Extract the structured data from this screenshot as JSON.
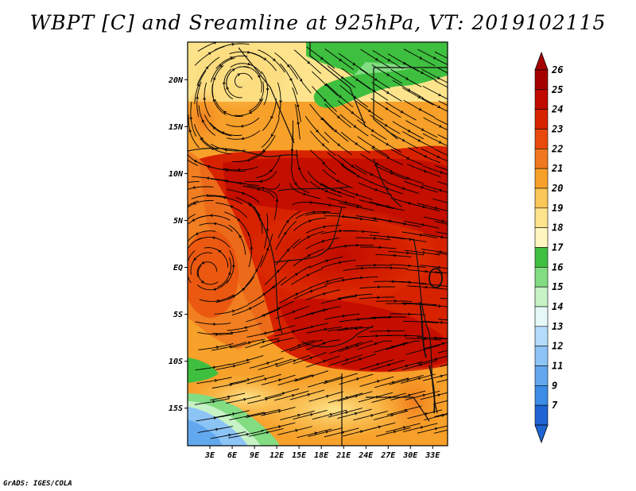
{
  "title": "WBPT [C] and Sreamline at 925hPa, VT: 2019102115",
  "credit": "GrADS: IGES/COLA",
  "map": {
    "lon_range": [
      0,
      35
    ],
    "lat_range": [
      -19,
      24
    ],
    "lon_ticks": [
      {
        "value": 3,
        "label": "3E"
      },
      {
        "value": 6,
        "label": "6E"
      },
      {
        "value": 9,
        "label": "9E"
      },
      {
        "value": 12,
        "label": "12E"
      },
      {
        "value": 15,
        "label": "15E"
      },
      {
        "value": 18,
        "label": "18E"
      },
      {
        "value": 21,
        "label": "21E"
      },
      {
        "value": 24,
        "label": "24E"
      },
      {
        "value": 27,
        "label": "27E"
      },
      {
        "value": 30,
        "label": "30E"
      },
      {
        "value": 33,
        "label": "33E"
      }
    ],
    "lat_ticks": [
      {
        "value": 20,
        "label": "20N"
      },
      {
        "value": 15,
        "label": "15N"
      },
      {
        "value": 10,
        "label": "10N"
      },
      {
        "value": 5,
        "label": "5N"
      },
      {
        "value": 0,
        "label": "EQ"
      },
      {
        "value": -5,
        "label": "5S"
      },
      {
        "value": -10,
        "label": "10S"
      },
      {
        "value": -15,
        "label": "15S"
      }
    ]
  },
  "colorbar": {
    "levels": [
      {
        "label": "26",
        "color": "#a50000"
      },
      {
        "label": "25",
        "color": "#c00a00"
      },
      {
        "label": "24",
        "color": "#d72200"
      },
      {
        "label": "23",
        "color": "#e84a0c"
      },
      {
        "label": "22",
        "color": "#f0781e"
      },
      {
        "label": "21",
        "color": "#f7a02a"
      },
      {
        "label": "20",
        "color": "#fac658"
      },
      {
        "label": "19",
        "color": "#fde48c"
      },
      {
        "label": "18",
        "color": "#fef6be"
      },
      {
        "label": "17",
        "color": "#3fbf3f"
      },
      {
        "label": "16",
        "color": "#82dc82"
      },
      {
        "label": "15",
        "color": "#c6f2c6"
      },
      {
        "label": "14",
        "color": "#e6f8f8"
      },
      {
        "label": "13",
        "color": "#b4dcfa"
      },
      {
        "label": "12",
        "color": "#8cc4f6"
      },
      {
        "label": "11",
        "color": "#62a8ee"
      },
      {
        "label": "9",
        "color": "#3c8ce6"
      },
      {
        "label": "7",
        "color": "#1e64d2"
      }
    ],
    "top_color": "#a50000",
    "bottom_color": "#1e64d2"
  }
}
